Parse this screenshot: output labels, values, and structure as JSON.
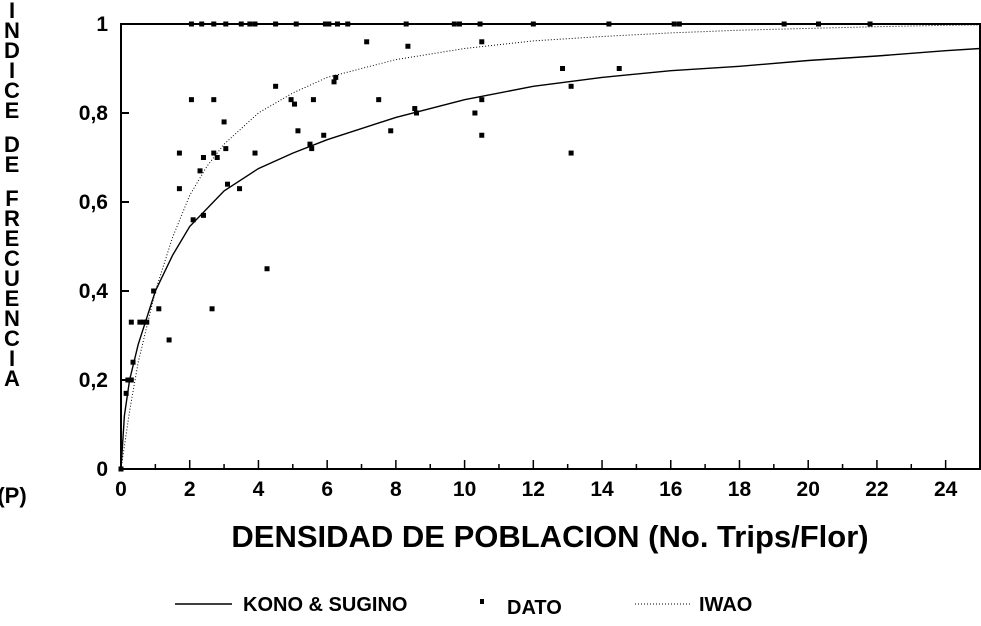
{
  "chart_data": {
    "type": "scatter",
    "xlabel": "DENSIDAD DE POBLACION (No. Trips/Flor)",
    "ylabel": "INDICE DE FRECUENCIA",
    "ylabel_suffix": "(P)",
    "xlim": [
      0,
      25
    ],
    "ylim": [
      0,
      1
    ],
    "x_ticks": [
      0,
      2,
      4,
      6,
      8,
      10,
      12,
      14,
      16,
      18,
      20,
      22,
      24
    ],
    "x_tick_labels": [
      "0",
      "2",
      "4",
      "6",
      "8",
      "10",
      "12",
      "14",
      "16",
      "18",
      "20",
      "22",
      "24"
    ],
    "y_ticks": [
      0,
      0.2,
      0.4,
      0.6,
      0.8,
      1
    ],
    "y_tick_labels": [
      "0",
      "0,2",
      "0,4",
      "0,6",
      "0,8",
      "1"
    ],
    "grid": false,
    "legend_position": "bottom",
    "series": [
      {
        "name": "DATO",
        "kind": "points",
        "points": [
          [
            0,
            0
          ],
          [
            0.15,
            0.17
          ],
          [
            0.2,
            0.2
          ],
          [
            0.3,
            0.2
          ],
          [
            0.3,
            0.33
          ],
          [
            0.35,
            0.24
          ],
          [
            0.55,
            0.33
          ],
          [
            0.65,
            0.33
          ],
          [
            0.75,
            0.33
          ],
          [
            0.95,
            0.4
          ],
          [
            1.1,
            0.36
          ],
          [
            1.4,
            0.29
          ],
          [
            1.7,
            0.71
          ],
          [
            1.7,
            0.63
          ],
          [
            2.05,
            0.83
          ],
          [
            2.1,
            0.56
          ],
          [
            2.3,
            0.67
          ],
          [
            2.4,
            0.7
          ],
          [
            2.4,
            0.57
          ],
          [
            2.65,
            0.36
          ],
          [
            2.7,
            0.83
          ],
          [
            2.7,
            0.71
          ],
          [
            2.8,
            0.7
          ],
          [
            3.0,
            0.78
          ],
          [
            3.05,
            0.72
          ],
          [
            3.1,
            0.64
          ],
          [
            3.45,
            0.63
          ],
          [
            3.9,
            0.71
          ],
          [
            4.25,
            0.45
          ],
          [
            4.5,
            0.86
          ],
          [
            4.95,
            0.83
          ],
          [
            5.05,
            0.82
          ],
          [
            5.15,
            0.76
          ],
          [
            5.5,
            0.73
          ],
          [
            5.55,
            0.72
          ],
          [
            5.6,
            0.83
          ],
          [
            5.9,
            0.75
          ],
          [
            6.2,
            0.87
          ],
          [
            6.25,
            0.88
          ],
          [
            7.15,
            0.96
          ],
          [
            7.5,
            0.83
          ],
          [
            7.85,
            0.76
          ],
          [
            8.35,
            0.95
          ],
          [
            8.55,
            0.81
          ],
          [
            8.6,
            0.8
          ],
          [
            10.3,
            0.8
          ],
          [
            10.5,
            0.96
          ],
          [
            10.5,
            0.83
          ],
          [
            10.5,
            0.75
          ],
          [
            12.85,
            0.9
          ],
          [
            13.1,
            0.86
          ],
          [
            13.1,
            0.71
          ],
          [
            14.5,
            0.9
          ],
          [
            2.05,
            1
          ],
          [
            2.35,
            1
          ],
          [
            2.7,
            1
          ],
          [
            3.05,
            1
          ],
          [
            3.5,
            1
          ],
          [
            3.75,
            1
          ],
          [
            3.9,
            1
          ],
          [
            4.5,
            1
          ],
          [
            5.1,
            1
          ],
          [
            5.95,
            1
          ],
          [
            6.05,
            1
          ],
          [
            6.3,
            1
          ],
          [
            6.6,
            1
          ],
          [
            8.3,
            1
          ],
          [
            9.7,
            1
          ],
          [
            9.85,
            1
          ],
          [
            10.45,
            1
          ],
          [
            12.0,
            1
          ],
          [
            14.2,
            1
          ],
          [
            16.1,
            1
          ],
          [
            16.25,
            1
          ],
          [
            19.3,
            1
          ],
          [
            20.3,
            1
          ],
          [
            21.8,
            1
          ]
        ]
      },
      {
        "name": "KONO & SUGINO",
        "kind": "line",
        "style": "solid",
        "x": [
          0,
          0.1,
          0.25,
          0.5,
          1,
          1.5,
          2,
          3,
          4,
          5,
          6,
          8,
          10,
          12,
          14,
          16,
          18,
          20,
          22,
          24,
          25
        ],
        "y": [
          0,
          0.12,
          0.2,
          0.28,
          0.4,
          0.48,
          0.545,
          0.625,
          0.675,
          0.71,
          0.74,
          0.79,
          0.83,
          0.86,
          0.88,
          0.895,
          0.905,
          0.918,
          0.928,
          0.94,
          0.945
        ]
      },
      {
        "name": "IWAO",
        "kind": "line",
        "style": "dotted",
        "x": [
          0,
          0.25,
          0.5,
          1,
          1.5,
          2,
          2.5,
          3,
          4,
          5,
          6,
          8,
          10,
          12,
          14,
          16,
          18,
          20,
          22,
          24,
          25
        ],
        "y": [
          0,
          0.13,
          0.24,
          0.4,
          0.52,
          0.615,
          0.68,
          0.73,
          0.8,
          0.845,
          0.88,
          0.92,
          0.945,
          0.962,
          0.972,
          0.98,
          0.986,
          0.99,
          0.994,
          0.997,
          0.998
        ]
      }
    ]
  }
}
